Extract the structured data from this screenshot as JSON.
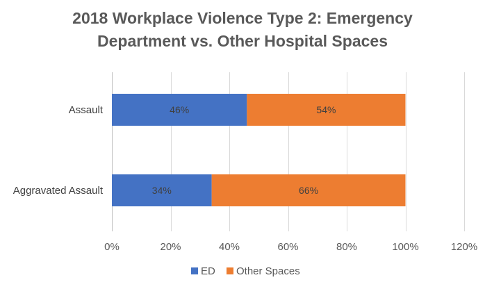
{
  "chart_data": {
    "type": "bar",
    "orientation": "horizontal",
    "stacked": true,
    "title_lines": [
      "2018 Workplace Violence Type 2: Emergency",
      "Department vs. Other Hospital Spaces"
    ],
    "categories": [
      "Assault",
      "Aggravated Assault"
    ],
    "series": [
      {
        "name": "ED",
        "values": [
          46,
          34
        ],
        "labels": [
          "46%",
          "34%"
        ],
        "color": "#4472C4"
      },
      {
        "name": "Other Spaces",
        "values": [
          54,
          66
        ],
        "labels": [
          "54%",
          "66%"
        ],
        "color": "#ED7D31"
      }
    ],
    "xlim": [
      0,
      120
    ],
    "ticks": [
      0,
      20,
      40,
      60,
      80,
      100,
      120
    ],
    "tick_labels": [
      "0%",
      "20%",
      "40%",
      "60%",
      "80%",
      "100%",
      "120%"
    ],
    "grid": true,
    "gridline_color": "#D9D9D9",
    "legend_position": "bottom"
  }
}
